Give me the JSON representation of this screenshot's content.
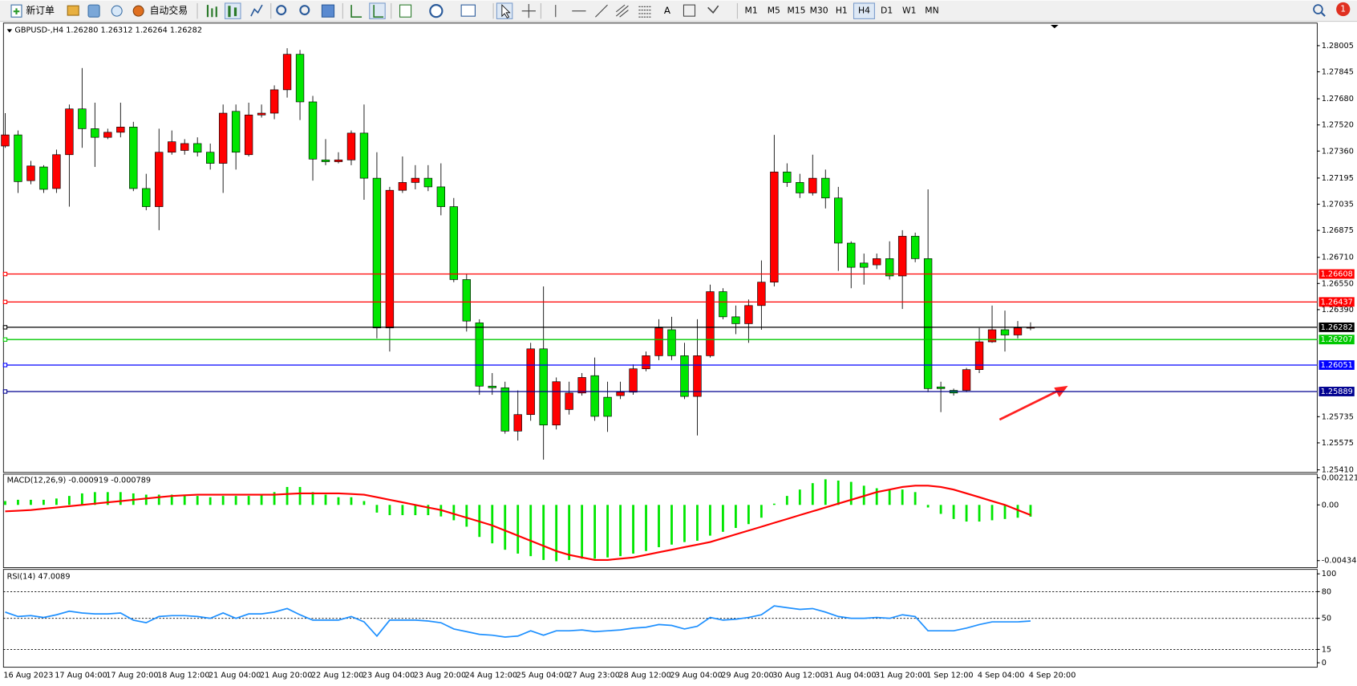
{
  "toolbar": {
    "new_order": "新订单",
    "auto_trading": "自动交易",
    "text_tool": "A",
    "timeframes": [
      {
        "label": "M1"
      },
      {
        "label": "M5"
      },
      {
        "label": "M15"
      },
      {
        "label": "M30"
      },
      {
        "label": "H1"
      },
      {
        "label": "H4",
        "selected": true
      },
      {
        "label": "D1"
      },
      {
        "label": "W1"
      },
      {
        "label": "MN"
      }
    ],
    "notifications": 1
  },
  "chart_data": [
    {
      "type": "candlestick",
      "title": "GBPUSD-,H4  1.26280 1.26312 1.26264 1.26282",
      "up_color": "#ff0000",
      "down_color": "#00e600",
      "categories": [
        "16 Aug 2023",
        null,
        null,
        null,
        "17 Aug 04:00",
        null,
        null,
        null,
        "17 Aug 20:00",
        null,
        null,
        null,
        "18 Aug 12:00",
        null,
        null,
        null,
        "21 Aug 04:00",
        null,
        null,
        null,
        "21 Aug 20:00",
        null,
        null,
        null,
        "22 Aug 12:00",
        null,
        null,
        null,
        "23 Aug 04:00",
        null,
        null,
        null,
        "23 Aug 20:00",
        null,
        null,
        null,
        "24 Aug 12:00",
        null,
        null,
        null,
        "25 Aug 04:00",
        null,
        null,
        null,
        "27 Aug 23:00",
        null,
        null,
        null,
        "28 Aug 12:00",
        null,
        null,
        null,
        "29 Aug 04:00",
        null,
        null,
        null,
        "29 Aug 20:00",
        null,
        null,
        null,
        "30 Aug 12:00",
        null,
        null,
        null,
        "31 Aug 04:00",
        null,
        null,
        null,
        "31 Aug 20:00",
        null,
        null,
        null,
        "1 Sep 12:00",
        null,
        null,
        null,
        "4 Sep 04:00",
        null,
        null,
        null,
        "4 Sep 20:00"
      ],
      "open": [
        1.27391,
        1.27459,
        1.27179,
        1.27263,
        1.27131,
        1.27338,
        1.27618,
        1.27497,
        1.27444,
        1.27475,
        1.27507,
        1.27131,
        1.2702,
        1.27353,
        1.27364,
        1.27406,
        1.27353,
        1.27285,
        1.27603,
        1.27338,
        1.27581,
        1.27592,
        1.27735,
        1.27952,
        1.27661,
        1.27306,
        1.27295,
        1.27306,
        1.2747,
        1.27194,
        1.26278,
        1.2712,
        1.27168,
        1.27194,
        1.27141,
        1.2702,
        1.26574,
        1.26309,
        1.25922,
        1.25912,
        1.25647,
        1.25748,
        1.2615,
        1.25684,
        1.25779,
        1.2588,
        1.25986,
        1.25854,
        1.25864,
        1.25885,
        1.26028,
        1.26108,
        1.26267,
        1.26108,
        1.25859,
        1.26108,
        1.265,
        1.26346,
        1.26304,
        1.26415,
        1.26558,
        1.27232,
        1.27168,
        1.27104,
        1.27194,
        1.27073,
        1.26797,
        1.26675,
        1.26664,
        1.26702,
        1.26596,
        1.26839,
        1.26702,
        1.25917,
        1.25896,
        1.25896,
        1.26023,
        1.26193,
        1.26267,
        1.26235,
        1.2628
      ],
      "high": [
        1.27592,
        1.27486,
        1.273,
        1.27274,
        1.27369,
        1.27645,
        1.27868,
        1.27656,
        1.27497,
        1.27656,
        1.27539,
        1.27221,
        1.27497,
        1.27486,
        1.27433,
        1.27444,
        1.27406,
        1.27645,
        1.27645,
        1.27656,
        1.27645,
        1.27762,
        1.27989,
        1.27979,
        1.27698,
        1.27433,
        1.27353,
        1.27486,
        1.27645,
        1.27353,
        1.27141,
        1.27327,
        1.27274,
        1.27274,
        1.27285,
        1.27073,
        1.26611,
        1.26331,
        1.26002,
        1.25949,
        1.25896,
        1.26187,
        1.26532,
        1.25975,
        1.25949,
        1.26002,
        1.26097,
        1.25949,
        1.25949,
        1.26055,
        1.26134,
        1.26331,
        1.26346,
        1.26187,
        1.26331,
        1.26543,
        1.26521,
        1.26415,
        1.26452,
        1.26691,
        1.27459,
        1.27285,
        1.27221,
        1.27338,
        1.27247,
        1.27141,
        1.26808,
        1.26733,
        1.26733,
        1.26808,
        1.26876,
        1.26861,
        1.27126,
        1.25949,
        1.25907,
        1.26034,
        1.26278,
        1.26415,
        1.26384,
        1.2632,
        1.26312
      ],
      "low": [
        1.2738,
        1.27104,
        1.27157,
        1.27104,
        1.27104,
        1.2702,
        1.2738,
        1.27263,
        1.27433,
        1.27444,
        1.27115,
        1.26998,
        1.26876,
        1.27338,
        1.27338,
        1.27327,
        1.27247,
        1.27104,
        1.27247,
        1.27327,
        1.27565,
        1.27555,
        1.27687,
        1.2755,
        1.27179,
        1.27274,
        1.27285,
        1.27274,
        1.27062,
        1.26214,
        1.26134,
        1.27104,
        1.27126,
        1.27115,
        1.26967,
        1.26558,
        1.26256,
        1.25869,
        1.25869,
        1.25631,
        1.25589,
        1.2571,
        1.25472,
        1.25657,
        1.25748,
        1.25864,
        1.2571,
        1.25642,
        1.25843,
        1.25869,
        1.26013,
        1.26081,
        1.26081,
        1.25843,
        1.2562,
        1.26097,
        1.26331,
        1.2624,
        1.26187,
        1.26267,
        1.26532,
        1.27141,
        1.27073,
        1.27088,
        1.27009,
        1.26627,
        1.26521,
        1.26543,
        1.26638,
        1.26574,
        1.26394,
        1.2668,
        1.25885,
        1.25763,
        1.25864,
        1.25885,
        1.26002,
        1.26187,
        1.26134,
        1.26214,
        1.26264
      ],
      "close": [
        1.27459,
        1.27173,
        1.27269,
        1.27126,
        1.27338,
        1.27618,
        1.27497,
        1.27444,
        1.27475,
        1.27507,
        1.27131,
        1.2702,
        1.27353,
        1.27417,
        1.27406,
        1.27353,
        1.27285,
        1.27592,
        1.27353,
        1.27581,
        1.27592,
        1.27735,
        1.27952,
        1.27661,
        1.27311,
        1.27295,
        1.27306,
        1.2747,
        1.27194,
        1.26278,
        1.2712,
        1.27168,
        1.27194,
        1.27141,
        1.2702,
        1.26574,
        1.2632,
        1.25922,
        1.25912,
        1.25647,
        1.25748,
        1.2615,
        1.25684,
        1.25949,
        1.2588,
        1.25975,
        1.25737,
        1.25737,
        1.25885,
        1.26028,
        1.26108,
        1.26278,
        1.26108,
        1.25859,
        1.26108,
        1.265,
        1.26346,
        1.26304,
        1.26415,
        1.26558,
        1.27232,
        1.27168,
        1.27104,
        1.27194,
        1.27073,
        1.26797,
        1.26649,
        1.26649,
        1.26702,
        1.26596,
        1.26839,
        1.26702,
        1.25907,
        1.25907,
        1.2588,
        1.26023,
        1.26193,
        1.26267,
        1.26235,
        1.26278,
        1.26282
      ],
      "ylim": [
        1.25394,
        1.28143
      ],
      "yticks": [
        1.28005,
        1.27845,
        {
          "value": 1.2768,
          "label": "1.27680"
        },
        {
          "value": 1.2752,
          "label": "1.27520"
        },
        {
          "value": 1.2736,
          "label": "1.27360"
        },
        1.27195,
        1.27035,
        1.26875,
        {
          "value": 1.2671,
          "label": "1.26710"
        },
        {
          "value": 1.2655,
          "label": "1.26550"
        },
        {
          "value": 1.2639,
          "label": "1.26390"
        },
        1.25735,
        1.25575,
        {
          "value": 1.2541,
          "label": "1.25410"
        }
      ],
      "lines": [
        {
          "value": 1.26608,
          "color": "#ff0000"
        },
        {
          "value": 1.26437,
          "color": "#ff0000"
        },
        {
          "value": 1.26282,
          "color": "#000000"
        },
        {
          "value": 1.26207,
          "color": "#00c800"
        },
        {
          "value": 1.26051,
          "color": "#0000ff"
        },
        {
          "value": 1.25889,
          "color": "#000090"
        }
      ]
    },
    {
      "type": "macd",
      "title": "MACD(12,26,9) -0.000919 -0.000789",
      "color": "#00e600",
      "values": [
        0.0003,
        0.0004,
        0.0004,
        0.0004,
        0.0005,
        0.0007,
        0.0009,
        0.001,
        0.001,
        0.001,
        0.0009,
        0.0008,
        0.0008,
        0.0008,
        0.0008,
        0.0007,
        0.0006,
        0.0007,
        0.0007,
        0.0007,
        0.0008,
        0.001,
        0.0014,
        0.0014,
        0.001,
        0.0008,
        0.0006,
        0.0006,
        0.0003,
        -0.0006,
        -0.0008,
        -0.0008,
        -0.0008,
        -0.0008,
        -0.0009,
        -0.0012,
        -0.0017,
        -0.0025,
        -0.003,
        -0.0035,
        -0.0038,
        -0.004,
        -0.0043,
        -0.0044,
        -0.0043,
        -0.0042,
        -0.0042,
        -0.0041,
        -0.004,
        -0.0038,
        -0.0036,
        -0.0033,
        -0.0031,
        -0.0029,
        -0.0028,
        -0.0024,
        -0.0021,
        -0.0018,
        -0.0015,
        -0.001,
        0.0001,
        0.0007,
        0.0012,
        0.0017,
        0.002,
        0.0019,
        0.0018,
        0.0015,
        0.0013,
        0.0012,
        0.0012,
        0.001,
        -0.0002,
        -0.0007,
        -0.0011,
        -0.0013,
        -0.0013,
        -0.0012,
        -0.0011,
        -0.001,
        -0.000919
      ],
      "signal": {
        "color": "#ff0000",
        "values": [
          -0.0005,
          -0.00045,
          -0.0004,
          -0.0003,
          -0.0002,
          -0.0001,
          0,
          0.0001,
          0.0002,
          0.0003,
          0.0004,
          0.0005,
          0.0006,
          0.0007,
          0.00075,
          0.0008,
          0.0008,
          0.0008,
          0.0008,
          0.0008,
          0.0008,
          0.0008,
          0.00085,
          0.0009,
          0.0009,
          0.0009,
          0.0009,
          0.00085,
          0.0008,
          0.0006,
          0.0004,
          0.0002,
          0,
          -0.0002,
          -0.0004,
          -0.0007,
          -0.001,
          -0.0013,
          -0.0016,
          -0.002,
          -0.0024,
          -0.0028,
          -0.0032,
          -0.0036,
          -0.0039,
          -0.0041,
          -0.0043,
          -0.0043,
          -0.0042,
          -0.0041,
          -0.0039,
          -0.0037,
          -0.0035,
          -0.0033,
          -0.0031,
          -0.0029,
          -0.0026,
          -0.0023,
          -0.002,
          -0.0017,
          -0.0014,
          -0.0011,
          -0.0008,
          -0.0005,
          -0.0002,
          0.0001,
          0.0004,
          0.0007,
          0.001,
          0.0012,
          0.0014,
          0.0015,
          0.0015,
          0.0014,
          0.0012,
          0.0009,
          0.0006,
          0.0003,
          0,
          -0.0004,
          -0.000789
        ]
      },
      "ylim": [
        -0.0049,
        0.0024
      ],
      "yticks": [
        0.002121,
        {
          "value": 0,
          "label": "0.00"
        },
        -0.004348
      ]
    },
    {
      "type": "line",
      "title": "RSI(14) 47.0089",
      "color": "#1e90ff",
      "values": [
        57,
        52,
        53,
        51,
        54,
        58,
        56,
        55,
        55,
        56,
        48,
        45,
        52,
        53,
        53,
        52,
        50,
        56,
        50,
        55,
        55,
        57,
        61,
        54,
        48,
        48,
        48,
        52,
        46,
        30,
        48,
        48,
        48,
        47,
        45,
        38,
        35,
        32,
        31,
        29,
        30,
        36,
        31,
        36,
        36,
        37,
        35,
        36,
        37,
        39,
        40,
        43,
        42,
        38,
        41,
        51,
        48,
        49,
        51,
        54,
        64,
        62,
        60,
        61,
        57,
        52,
        50,
        50,
        51,
        50,
        54,
        52,
        36,
        36,
        36,
        39,
        43,
        46,
        46,
        46,
        47.0089
      ],
      "ylim": [
        -5,
        105
      ],
      "yticks": [
        100,
        80,
        50,
        15,
        0
      ],
      "levels": [
        80,
        50,
        15
      ]
    }
  ]
}
